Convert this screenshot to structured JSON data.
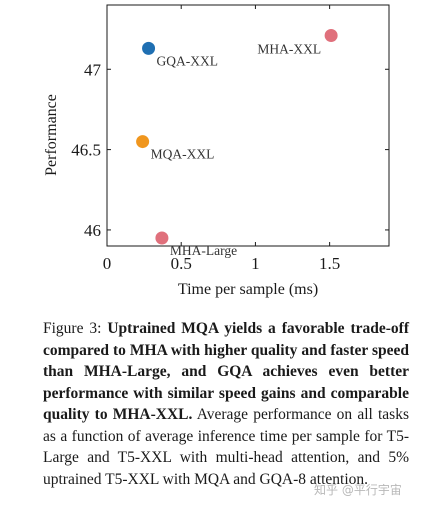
{
  "chart_data": {
    "type": "scatter",
    "xlabel": "Time per sample (ms)",
    "ylabel": "Performance",
    "xlim": [
      0,
      1.9
    ],
    "ylim": [
      45.9,
      47.4
    ],
    "xticks": [
      0,
      0.5,
      1,
      1.5
    ],
    "xtick_labels": [
      "0",
      "0.5",
      "1",
      "1.5"
    ],
    "yticks": [
      46,
      46.5,
      47
    ],
    "ytick_labels": [
      "46",
      "46.5",
      "47"
    ],
    "grid": false,
    "points": [
      {
        "label": "GQA-XXL",
        "x": 0.28,
        "y": 47.13,
        "color": "#1f6fb2"
      },
      {
        "label": "MHA-XXL",
        "x": 1.51,
        "y": 47.21,
        "color": "#e0707c"
      },
      {
        "label": "MQA-XXL",
        "x": 0.24,
        "y": 46.55,
        "color": "#f0961e"
      },
      {
        "label": "MHA-Large",
        "x": 0.37,
        "y": 45.95,
        "color": "#e0707c"
      }
    ]
  },
  "caption": {
    "prefix": "Figure 3: ",
    "bold": "Uptrained MQA yields a favorable trade-off compared to MHA with higher quality and faster speed than MHA-Large, and GQA achieves even better performance with similar speed gains and comparable quality to MHA-XXL.",
    "rest": " Average performance on all tasks as a function of average inference time per sample for T5-Large and T5-XXL with multi-head attention, and 5% uptrained T5-XXL with MQA and GQA-8 attention."
  },
  "watermark": "知乎 @平行宇宙"
}
